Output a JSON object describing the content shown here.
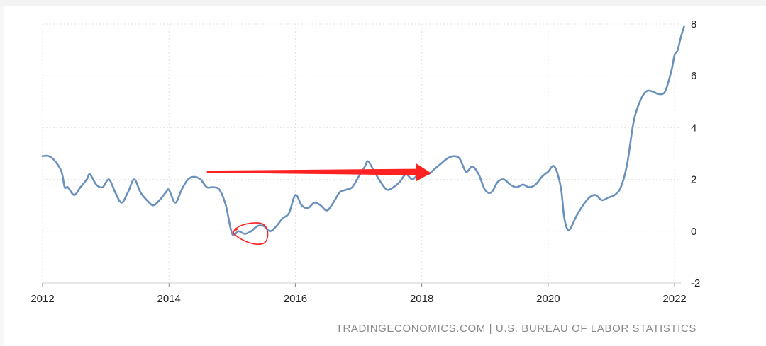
{
  "chart_data": {
    "type": "line",
    "title": "",
    "xlabel": "",
    "ylabel": "",
    "xlim": [
      2012,
      2022.1
    ],
    "ylim": [
      -2,
      8
    ],
    "grid": true,
    "x_ticks": [
      "2012",
      "2014",
      "2016",
      "2018",
      "2020",
      "2022"
    ],
    "y_ticks": [
      "-2",
      "0",
      "2",
      "4",
      "6",
      "8"
    ],
    "series": [
      {
        "color": "#6a91bd",
        "points": [
          [
            2012.0,
            2.9
          ],
          [
            2012.1,
            2.9
          ],
          [
            2012.2,
            2.7
          ],
          [
            2012.3,
            2.3
          ],
          [
            2012.35,
            1.7
          ],
          [
            2012.4,
            1.7
          ],
          [
            2012.5,
            1.4
          ],
          [
            2012.6,
            1.7
          ],
          [
            2012.7,
            2.0
          ],
          [
            2012.75,
            2.2
          ],
          [
            2012.85,
            1.8
          ],
          [
            2012.95,
            1.7
          ],
          [
            2013.05,
            2.0
          ],
          [
            2013.15,
            1.5
          ],
          [
            2013.25,
            1.1
          ],
          [
            2013.35,
            1.5
          ],
          [
            2013.45,
            2.0
          ],
          [
            2013.55,
            1.5
          ],
          [
            2013.65,
            1.2
          ],
          [
            2013.75,
            1.0
          ],
          [
            2013.85,
            1.2
          ],
          [
            2013.95,
            1.5
          ],
          [
            2014.0,
            1.6
          ],
          [
            2014.1,
            1.1
          ],
          [
            2014.2,
            1.6
          ],
          [
            2014.3,
            2.0
          ],
          [
            2014.4,
            2.1
          ],
          [
            2014.5,
            2.0
          ],
          [
            2014.6,
            1.7
          ],
          [
            2014.7,
            1.7
          ],
          [
            2014.8,
            1.6
          ],
          [
            2014.9,
            1.0
          ],
          [
            2015.0,
            -0.1
          ],
          [
            2015.1,
            0.0
          ],
          [
            2015.2,
            -0.1
          ],
          [
            2015.3,
            0.0
          ],
          [
            2015.4,
            0.2
          ],
          [
            2015.5,
            0.2
          ],
          [
            2015.6,
            0.0
          ],
          [
            2015.7,
            0.2
          ],
          [
            2015.8,
            0.5
          ],
          [
            2015.9,
            0.7
          ],
          [
            2016.0,
            1.4
          ],
          [
            2016.1,
            1.0
          ],
          [
            2016.2,
            0.9
          ],
          [
            2016.3,
            1.1
          ],
          [
            2016.4,
            1.0
          ],
          [
            2016.5,
            0.8
          ],
          [
            2016.6,
            1.1
          ],
          [
            2016.7,
            1.5
          ],
          [
            2016.8,
            1.6
          ],
          [
            2016.9,
            1.7
          ],
          [
            2017.0,
            2.1
          ],
          [
            2017.1,
            2.5
          ],
          [
            2017.15,
            2.7
          ],
          [
            2017.25,
            2.3
          ],
          [
            2017.35,
            1.9
          ],
          [
            2017.45,
            1.6
          ],
          [
            2017.55,
            1.7
          ],
          [
            2017.65,
            1.9
          ],
          [
            2017.75,
            2.2
          ],
          [
            2017.85,
            2.0
          ],
          [
            2017.95,
            2.2
          ],
          [
            2018.1,
            2.2
          ],
          [
            2018.2,
            2.4
          ],
          [
            2018.3,
            2.6
          ],
          [
            2018.4,
            2.8
          ],
          [
            2018.5,
            2.9
          ],
          [
            2018.6,
            2.8
          ],
          [
            2018.7,
            2.3
          ],
          [
            2018.8,
            2.5
          ],
          [
            2018.9,
            2.2
          ],
          [
            2019.0,
            1.6
          ],
          [
            2019.1,
            1.5
          ],
          [
            2019.2,
            1.9
          ],
          [
            2019.3,
            2.0
          ],
          [
            2019.4,
            1.8
          ],
          [
            2019.5,
            1.7
          ],
          [
            2019.6,
            1.8
          ],
          [
            2019.7,
            1.7
          ],
          [
            2019.8,
            1.8
          ],
          [
            2019.9,
            2.1
          ],
          [
            2020.0,
            2.3
          ],
          [
            2020.1,
            2.5
          ],
          [
            2020.2,
            1.7
          ],
          [
            2020.25,
            0.6
          ],
          [
            2020.3,
            0.1
          ],
          [
            2020.35,
            0.1
          ],
          [
            2020.45,
            0.6
          ],
          [
            2020.55,
            1.0
          ],
          [
            2020.65,
            1.3
          ],
          [
            2020.75,
            1.4
          ],
          [
            2020.85,
            1.2
          ],
          [
            2020.95,
            1.3
          ],
          [
            2021.05,
            1.4
          ],
          [
            2021.15,
            1.7
          ],
          [
            2021.25,
            2.6
          ],
          [
            2021.35,
            4.2
          ],
          [
            2021.45,
            5.0
          ],
          [
            2021.55,
            5.4
          ],
          [
            2021.65,
            5.4
          ],
          [
            2021.75,
            5.3
          ],
          [
            2021.85,
            5.4
          ],
          [
            2021.95,
            6.2
          ],
          [
            2022.0,
            6.8
          ],
          [
            2022.05,
            7.0
          ],
          [
            2022.1,
            7.5
          ],
          [
            2022.15,
            7.9
          ]
        ]
      }
    ],
    "annotations": [
      {
        "type": "arrow",
        "color": "#ff2222",
        "from": [
          2014.6,
          2.3
        ],
        "to": [
          2018.15,
          2.3
        ]
      },
      {
        "type": "circle",
        "color": "#ff2222",
        "center": [
          2015.3,
          -0.1
        ]
      }
    ]
  },
  "source_text": "TRADINGECONOMICS.COM | U.S. BUREAU OF LABOR STATISTICS"
}
